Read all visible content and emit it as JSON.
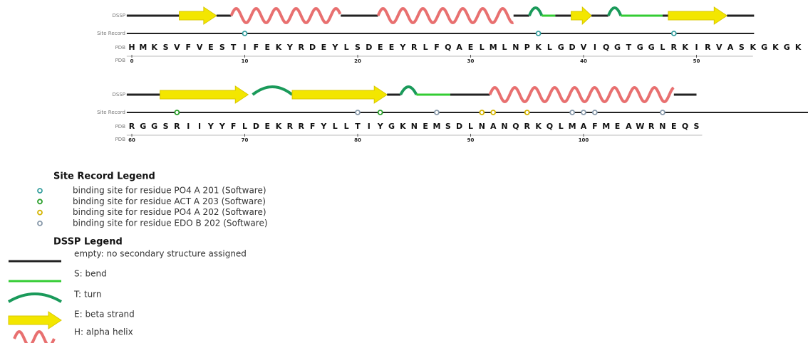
{
  "tracks": [
    {
      "dssp_label": "DSSP",
      "site_label": "Site Record",
      "sequence_label": "PDB",
      "numbering_label": "PDB",
      "sequence": "HMKSVFVESTIFEKYRDEYLSDEEYRLFQAELMLNPKLGDVIQGTGGLRKIRVASKGKGK",
      "ticks": [
        0,
        10,
        20,
        30,
        40,
        50
      ]
    },
    {
      "dssp_label": "DSSP",
      "site_label": "Site Record",
      "sequence_label": "PDB",
      "numbering_label": "PDB",
      "sequence": "RGGSRIIYYFLDEKRRFYLLTIYGKNEMSDLNANQRKQLMAFMEAWRNEQS",
      "ticks": [
        60,
        70,
        80,
        90,
        100
      ]
    }
  ],
  "site_legend": {
    "title": "Site Record Legend",
    "items": [
      "binding site for residue PO4 A 201 (Software)",
      "binding site for residue ACT A 203 (Software)",
      "binding site for residue PO4 A 202 (Software)",
      "binding site for residue EDO B 202 (Software)"
    ]
  },
  "dssp_legend": {
    "title": "DSSP Legend",
    "items": [
      "empty: no secondary structure assigned",
      "S: bend",
      "T: turn",
      "E: beta strand",
      "H: alpha helix"
    ]
  }
}
